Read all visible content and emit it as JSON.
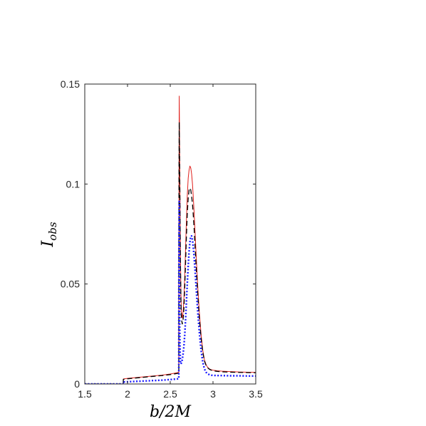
{
  "chart_data": {
    "type": "line",
    "title": "",
    "xlabel": "b/2M",
    "ylabel": {
      "base": "I",
      "subscript": "obs"
    },
    "xlim": [
      1.5,
      3.5
    ],
    "ylim": [
      0,
      0.15
    ],
    "xticks": [
      1.5,
      2,
      2.5,
      3,
      3.5
    ],
    "xtick_labels": [
      "1.5",
      "2",
      "2.5",
      "3",
      "3.5"
    ],
    "yticks": [
      0,
      0.05,
      0.1,
      0.15
    ],
    "ytick_labels": [
      "0",
      "0.05",
      "0.1",
      "0.15"
    ],
    "grid": false,
    "legend": "none",
    "series": [
      {
        "color": "#e0201c",
        "style": "solid",
        "x": [
          1.5,
          1.95,
          1.951,
          2.0,
          2.1,
          2.2,
          2.3,
          2.4,
          2.5,
          2.6,
          2.601,
          2.605,
          2.61,
          2.615,
          2.62,
          2.625,
          2.63,
          2.64,
          2.65,
          2.66,
          2.67,
          2.68,
          2.69,
          2.7,
          2.71,
          2.72,
          2.73,
          2.74,
          2.75,
          2.76,
          2.77,
          2.78,
          2.79,
          2.8,
          2.82,
          2.84,
          2.86,
          2.88,
          2.9,
          2.92,
          2.94,
          2.96,
          2.98,
          3.0,
          3.05,
          3.1,
          3.2,
          3.3,
          3.4,
          3.5
        ],
        "y": [
          0,
          0,
          0.0025,
          0.0028,
          0.0032,
          0.0036,
          0.004,
          0.0044,
          0.005,
          0.0058,
          0.09,
          0.144,
          0.118,
          0.09,
          0.062,
          0.045,
          0.036,
          0.033,
          0.036,
          0.043,
          0.055,
          0.069,
          0.083,
          0.095,
          0.103,
          0.107,
          0.109,
          0.108,
          0.105,
          0.1,
          0.093,
          0.085,
          0.076,
          0.067,
          0.05,
          0.036,
          0.025,
          0.017,
          0.012,
          0.0095,
          0.0082,
          0.0075,
          0.0071,
          0.0069,
          0.0066,
          0.0064,
          0.0062,
          0.006,
          0.0059,
          0.0058
        ]
      },
      {
        "color": "#000000",
        "style": "dashed",
        "x": [
          1.5,
          1.95,
          1.951,
          2.0,
          2.1,
          2.2,
          2.3,
          2.4,
          2.5,
          2.6,
          2.601,
          2.605,
          2.61,
          2.615,
          2.62,
          2.625,
          2.63,
          2.64,
          2.65,
          2.66,
          2.67,
          2.68,
          2.69,
          2.7,
          2.71,
          2.72,
          2.73,
          2.74,
          2.75,
          2.76,
          2.77,
          2.78,
          2.79,
          2.8,
          2.82,
          2.84,
          2.86,
          2.88,
          2.9,
          2.92,
          2.94,
          2.96,
          2.98,
          3.0,
          3.05,
          3.1,
          3.2,
          3.3,
          3.4,
          3.5
        ],
        "y": [
          0,
          0,
          0.0023,
          0.0026,
          0.003,
          0.0034,
          0.0038,
          0.0042,
          0.0047,
          0.0054,
          0.08,
          0.131,
          0.105,
          0.08,
          0.056,
          0.041,
          0.033,
          0.03,
          0.032,
          0.038,
          0.049,
          0.062,
          0.075,
          0.086,
          0.093,
          0.097,
          0.098,
          0.097,
          0.094,
          0.09,
          0.084,
          0.077,
          0.069,
          0.061,
          0.046,
          0.033,
          0.023,
          0.016,
          0.0115,
          0.0092,
          0.008,
          0.0073,
          0.0069,
          0.0066,
          0.0063,
          0.0061,
          0.0059,
          0.0058,
          0.0057,
          0.0056
        ]
      },
      {
        "color": "#1a1aff",
        "style": "dotted",
        "x": [
          1.5,
          1.95,
          1.951,
          2.0,
          2.1,
          2.2,
          2.3,
          2.4,
          2.5,
          2.6,
          2.601,
          2.605,
          2.61,
          2.615,
          2.62,
          2.625,
          2.63,
          2.64,
          2.65,
          2.66,
          2.67,
          2.68,
          2.69,
          2.7,
          2.71,
          2.72,
          2.73,
          2.74,
          2.75,
          2.76,
          2.77,
          2.78,
          2.79,
          2.8,
          2.82,
          2.84,
          2.86,
          2.88,
          2.9,
          2.92,
          2.94,
          2.96,
          2.98,
          3.0,
          3.05,
          3.1,
          3.2,
          3.3,
          3.4,
          3.5
        ],
        "y": [
          0,
          0,
          0.001,
          0.0011,
          0.0013,
          0.0015,
          0.0017,
          0.0019,
          0.0022,
          0.0026,
          0.058,
          0.092,
          0.03,
          0.016,
          0.011,
          0.01,
          0.0105,
          0.012,
          0.015,
          0.019,
          0.025,
          0.033,
          0.042,
          0.051,
          0.059,
          0.066,
          0.071,
          0.074,
          0.074,
          0.072,
          0.068,
          0.063,
          0.057,
          0.05,
          0.037,
          0.026,
          0.017,
          0.011,
          0.0075,
          0.0058,
          0.005,
          0.0046,
          0.0044,
          0.0043,
          0.0042,
          0.0042,
          0.0041,
          0.0041,
          0.004,
          0.004
        ]
      }
    ]
  }
}
